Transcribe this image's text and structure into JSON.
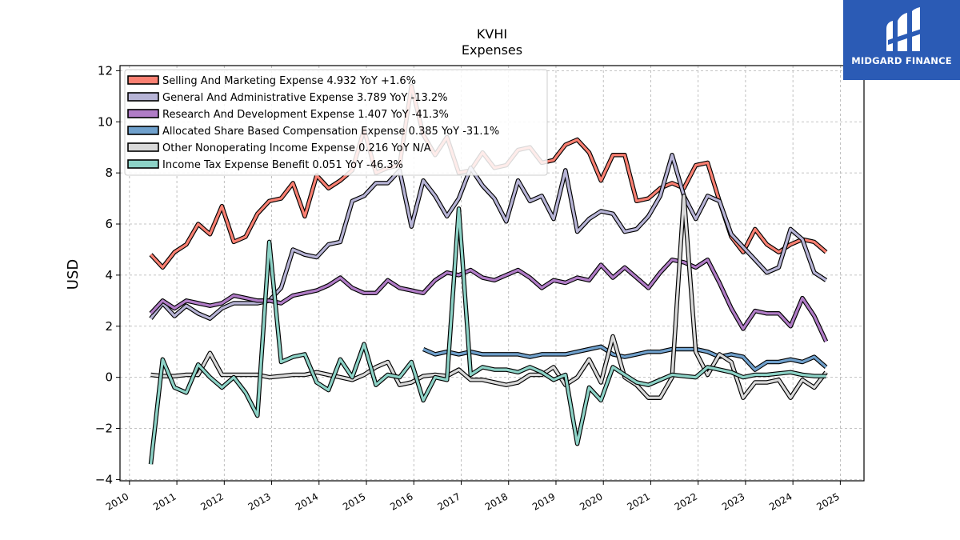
{
  "header": {
    "ticker": "KVHI",
    "subtitle": "Expenses"
  },
  "brand": {
    "name": "MIDGARD FINANCE",
    "logo_icon": "midgard-logo-icon",
    "background_color": "#2b5bb5"
  },
  "chart_data": {
    "type": "line",
    "title": "KVHI",
    "subtitle": "Expenses",
    "ylabel": "USD",
    "xlabel": "",
    "ylim": [
      -4,
      12
    ],
    "xlim": [
      2009.8,
      2025.5
    ],
    "yticks": [
      -4,
      -2,
      0,
      2,
      4,
      6,
      8,
      10,
      12
    ],
    "ytick_labels": [
      "−4",
      "−2",
      "0",
      "2",
      "4",
      "6",
      "8",
      "10",
      "12"
    ],
    "xticks": [
      2010,
      2011,
      2012,
      2013,
      2014,
      2015,
      2016,
      2017,
      2018,
      2019,
      2020,
      2021,
      2022,
      2023,
      2024,
      2025
    ],
    "xtick_labels": [
      "2010",
      "2011",
      "2012",
      "2013",
      "2014",
      "2015",
      "2016",
      "2017",
      "2018",
      "2019",
      "2020",
      "2021",
      "2022",
      "2023",
      "2024",
      "2025"
    ],
    "grid": true,
    "legend_position": "top-left",
    "series": [
      {
        "name": "Selling And Marketing Expense",
        "legend_label": "Selling And Marketing Expense  4.932 YoY +1.6%",
        "color": "#fa8072",
        "x": [
          2010.45,
          2010.7,
          2010.95,
          2011.2,
          2011.45,
          2011.7,
          2011.95,
          2012.2,
          2012.45,
          2012.7,
          2012.95,
          2013.2,
          2013.45,
          2013.7,
          2013.95,
          2014.2,
          2014.45,
          2014.7,
          2014.95,
          2015.2,
          2015.45,
          2015.7,
          2015.95,
          2016.2,
          2016.45,
          2016.7,
          2016.95,
          2017.2,
          2017.45,
          2017.7,
          2017.95,
          2018.2,
          2018.45,
          2018.7,
          2018.95,
          2019.2,
          2019.45,
          2019.7,
          2019.95,
          2020.2,
          2020.45,
          2020.7,
          2020.95,
          2021.2,
          2021.45,
          2021.7,
          2021.95,
          2022.2,
          2022.45,
          2022.7,
          2022.95,
          2023.2,
          2023.45,
          2023.7,
          2023.95,
          2024.2,
          2024.45,
          2024.7
        ],
        "values": [
          4.8,
          4.3,
          4.9,
          5.2,
          6.0,
          5.6,
          6.7,
          5.3,
          5.5,
          6.4,
          6.9,
          7.0,
          7.6,
          6.3,
          7.9,
          7.4,
          7.7,
          8.1,
          9.7,
          8.0,
          8.2,
          8.3,
          11.4,
          9.5,
          8.7,
          9.4,
          8.0,
          8.1,
          8.8,
          8.2,
          8.3,
          8.9,
          9.0,
          8.4,
          8.5,
          9.1,
          9.3,
          8.8,
          7.7,
          8.7,
          8.7,
          6.9,
          7.0,
          7.4,
          7.6,
          7.4,
          8.3,
          8.4,
          6.9,
          5.5,
          4.9,
          5.8,
          5.2,
          4.9,
          5.2,
          5.4,
          5.3,
          4.9
        ]
      },
      {
        "name": "General And Administrative Expense",
        "legend_label": "General And Administrative Expense  3.789 YoY -13.2%",
        "color": "#b7b4d6",
        "x": [
          2010.45,
          2010.7,
          2010.95,
          2011.2,
          2011.45,
          2011.7,
          2011.95,
          2012.2,
          2012.45,
          2012.7,
          2012.95,
          2013.2,
          2013.45,
          2013.7,
          2013.95,
          2014.2,
          2014.45,
          2014.7,
          2014.95,
          2015.2,
          2015.45,
          2015.7,
          2015.95,
          2016.2,
          2016.45,
          2016.7,
          2016.95,
          2017.2,
          2017.45,
          2017.7,
          2017.95,
          2018.2,
          2018.45,
          2018.7,
          2018.95,
          2019.2,
          2019.45,
          2019.7,
          2019.95,
          2020.2,
          2020.45,
          2020.7,
          2020.95,
          2021.2,
          2021.45,
          2021.7,
          2021.95,
          2022.2,
          2022.45,
          2022.7,
          2022.95,
          2023.2,
          2023.45,
          2023.7,
          2023.95,
          2024.2,
          2024.45,
          2024.7
        ],
        "values": [
          2.3,
          2.9,
          2.4,
          2.8,
          2.5,
          2.3,
          2.7,
          2.9,
          2.9,
          2.9,
          3.0,
          3.5,
          5.0,
          4.8,
          4.7,
          5.2,
          5.3,
          6.9,
          7.1,
          7.6,
          7.6,
          8.1,
          5.9,
          7.7,
          7.1,
          6.3,
          7.0,
          8.2,
          7.5,
          7.0,
          6.1,
          7.7,
          6.9,
          7.1,
          6.2,
          8.1,
          5.7,
          6.2,
          6.5,
          6.4,
          5.7,
          5.8,
          6.3,
          7.1,
          8.7,
          7.1,
          6.2,
          7.1,
          6.9,
          5.6,
          5.1,
          4.6,
          4.1,
          4.3,
          5.8,
          5.4,
          4.1,
          3.8
        ]
      },
      {
        "name": "Research And Development Expense",
        "legend_label": "Research And Development Expense  1.407 YoY -41.3%",
        "color": "#b07cc6",
        "x": [
          2010.45,
          2010.7,
          2010.95,
          2011.2,
          2011.45,
          2011.7,
          2011.95,
          2012.2,
          2012.45,
          2012.7,
          2012.95,
          2013.2,
          2013.45,
          2013.7,
          2013.95,
          2014.2,
          2014.45,
          2014.7,
          2014.95,
          2015.2,
          2015.45,
          2015.7,
          2015.95,
          2016.2,
          2016.45,
          2016.7,
          2016.95,
          2017.2,
          2017.45,
          2017.7,
          2017.95,
          2018.2,
          2018.45,
          2018.7,
          2018.95,
          2019.2,
          2019.45,
          2019.7,
          2019.95,
          2020.2,
          2020.45,
          2020.7,
          2020.95,
          2021.2,
          2021.45,
          2021.7,
          2021.95,
          2022.2,
          2022.45,
          2022.7,
          2022.95,
          2023.2,
          2023.45,
          2023.7,
          2023.95,
          2024.2,
          2024.45,
          2024.7
        ],
        "values": [
          2.5,
          3.0,
          2.7,
          3.0,
          2.9,
          2.8,
          2.9,
          3.2,
          3.1,
          3.0,
          3.0,
          2.9,
          3.2,
          3.3,
          3.4,
          3.6,
          3.9,
          3.5,
          3.3,
          3.3,
          3.8,
          3.5,
          3.4,
          3.3,
          3.8,
          4.1,
          4.0,
          4.2,
          3.9,
          3.8,
          4.0,
          4.2,
          3.9,
          3.5,
          3.8,
          3.7,
          3.9,
          3.8,
          4.4,
          3.9,
          4.3,
          3.9,
          3.5,
          4.1,
          4.6,
          4.5,
          4.3,
          4.6,
          3.7,
          2.7,
          1.9,
          2.6,
          2.5,
          2.5,
          2.0,
          3.1,
          2.4,
          1.4
        ]
      },
      {
        "name": "Allocated Share Based Compensation Expense",
        "legend_label": "Allocated Share Based Compensation Expense  0.385 YoY -31.1%",
        "color": "#6fa0cc",
        "x": [
          2016.2,
          2016.45,
          2016.7,
          2016.95,
          2017.2,
          2017.45,
          2017.7,
          2017.95,
          2018.2,
          2018.45,
          2018.7,
          2018.95,
          2019.2,
          2019.45,
          2019.7,
          2019.95,
          2020.2,
          2020.45,
          2020.7,
          2020.95,
          2021.2,
          2021.45,
          2021.7,
          2021.95,
          2022.2,
          2022.45,
          2022.7,
          2022.95,
          2023.2,
          2023.45,
          2023.7,
          2023.95,
          2024.2,
          2024.45,
          2024.7
        ],
        "values": [
          1.1,
          0.9,
          1.0,
          0.9,
          1.0,
          0.9,
          0.9,
          0.9,
          0.9,
          0.8,
          0.9,
          0.9,
          0.9,
          1.0,
          1.1,
          1.2,
          0.9,
          0.8,
          0.9,
          1.0,
          1.0,
          1.1,
          1.1,
          1.1,
          1.0,
          0.8,
          0.9,
          0.8,
          0.3,
          0.6,
          0.6,
          0.7,
          0.6,
          0.8,
          0.4
        ]
      },
      {
        "name": "Other Nonoperating Income Expense",
        "legend_label": "Other Nonoperating Income Expense  0.216 YoY N/A",
        "color": "#d9d9d9",
        "x": [
          2010.45,
          2010.7,
          2010.95,
          2011.2,
          2011.45,
          2011.7,
          2011.95,
          2012.2,
          2012.45,
          2012.7,
          2012.95,
          2013.2,
          2013.45,
          2013.7,
          2013.95,
          2014.2,
          2014.45,
          2014.7,
          2014.95,
          2015.2,
          2015.45,
          2015.7,
          2015.95,
          2016.2,
          2016.45,
          2016.7,
          2016.95,
          2017.2,
          2017.45,
          2017.7,
          2017.95,
          2018.2,
          2018.45,
          2018.7,
          2018.95,
          2019.2,
          2019.45,
          2019.7,
          2019.95,
          2020.2,
          2020.45,
          2020.7,
          2020.95,
          2021.2,
          2021.45,
          2021.7,
          2021.95,
          2022.2,
          2022.45,
          2022.7,
          2022.95,
          2023.2,
          2023.45,
          2023.7,
          2023.95,
          2024.2,
          2024.45,
          2024.7
        ],
        "values": [
          0.1,
          0.05,
          0.05,
          0.1,
          0.1,
          0.95,
          0.1,
          0.1,
          0.1,
          0.1,
          0.0,
          0.05,
          0.1,
          0.1,
          0.2,
          0.1,
          0.0,
          -0.1,
          0.1,
          0.4,
          0.6,
          -0.3,
          -0.2,
          0.05,
          0.1,
          0.05,
          0.3,
          -0.1,
          -0.1,
          -0.2,
          -0.3,
          -0.2,
          0.1,
          0.1,
          0.4,
          -0.3,
          0.0,
          0.7,
          -0.2,
          1.6,
          0.0,
          -0.3,
          -0.8,
          -0.8,
          0.0,
          7.1,
          1.0,
          0.1,
          0.9,
          0.6,
          -0.8,
          -0.2,
          -0.2,
          -0.1,
          -0.8,
          -0.1,
          -0.4,
          0.2
        ]
      },
      {
        "name": "Income Tax Expense Benefit",
        "legend_label": "Income Tax Expense Benefit  0.051 YoY -46.3%",
        "color": "#8dd3c7",
        "x": [
          2010.45,
          2010.7,
          2010.95,
          2011.2,
          2011.45,
          2011.7,
          2011.95,
          2012.2,
          2012.45,
          2012.7,
          2012.95,
          2013.2,
          2013.45,
          2013.7,
          2013.95,
          2014.2,
          2014.45,
          2014.7,
          2014.95,
          2015.2,
          2015.45,
          2015.7,
          2015.95,
          2016.2,
          2016.45,
          2016.7,
          2016.95,
          2017.2,
          2017.45,
          2017.7,
          2017.95,
          2018.2,
          2018.45,
          2018.7,
          2018.95,
          2019.2,
          2019.45,
          2019.7,
          2019.95,
          2020.2,
          2020.45,
          2020.7,
          2020.95,
          2021.2,
          2021.45,
          2021.7,
          2021.95,
          2022.2,
          2022.45,
          2022.7,
          2022.95,
          2023.2,
          2023.45,
          2023.7,
          2023.95,
          2024.2,
          2024.45,
          2024.7
        ],
        "values": [
          -3.4,
          0.7,
          -0.4,
          -0.6,
          0.5,
          0.0,
          -0.4,
          0.0,
          -0.6,
          -1.5,
          5.3,
          0.6,
          0.8,
          0.9,
          -0.2,
          -0.5,
          0.7,
          0.0,
          1.3,
          -0.3,
          0.1,
          0.0,
          0.6,
          -0.9,
          0.0,
          -0.1,
          6.6,
          0.1,
          0.4,
          0.3,
          0.3,
          0.2,
          0.4,
          0.2,
          -0.1,
          0.1,
          -2.6,
          -0.4,
          -0.9,
          0.4,
          0.1,
          -0.2,
          -0.3,
          -0.1,
          0.1,
          0.05,
          0.0,
          0.4,
          0.3,
          0.2,
          0.0,
          0.1,
          0.1,
          0.15,
          0.2,
          0.1,
          0.05,
          0.05
        ]
      }
    ]
  }
}
